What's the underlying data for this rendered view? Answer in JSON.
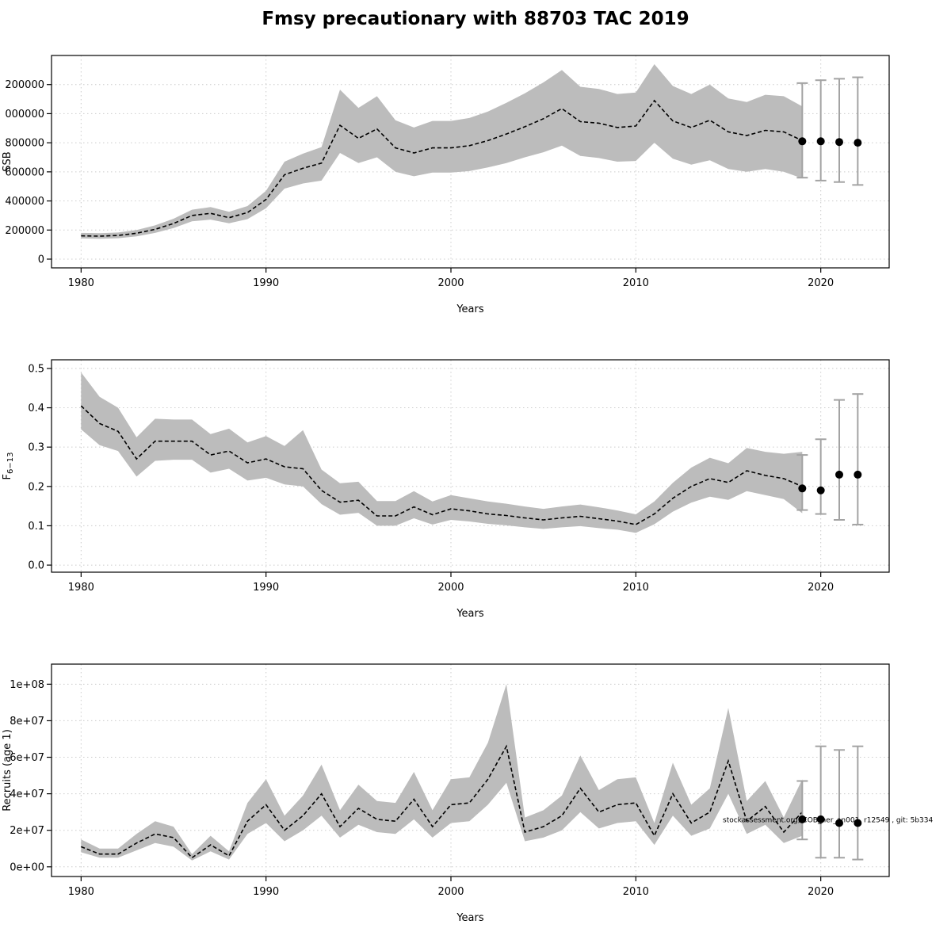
{
  "title": "Fmsy precautionary with 88703 TAC 2019",
  "colors": {
    "band": "#bcbcbc",
    "line": "#000000",
    "grid": "#cccccc",
    "forecast_bar": "#a3a3a3",
    "forecast_dot": "#000000"
  },
  "chart_data": [
    {
      "type": "line",
      "name": "ssb",
      "xlabel": "Years",
      "ylabel": "SSB",
      "ylabel_sub": "",
      "xlim": [
        1978.4,
        2023.7
      ],
      "ylim": [
        -60000,
        1400000
      ],
      "xticks": [
        1980,
        1990,
        2000,
        2010,
        2020
      ],
      "xtick_labels": [
        "1980",
        "1990",
        "2000",
        "2010",
        "2020"
      ],
      "ytick_values": [
        0,
        200000,
        400000,
        600000,
        800000,
        1000000,
        1200000
      ],
      "ytick_labels": [
        "0",
        "200000",
        "400000",
        "600000",
        "800000",
        "000000",
        "200000"
      ],
      "x": [
        1980,
        1981,
        1982,
        1983,
        1984,
        1985,
        1986,
        1987,
        1988,
        1989,
        1990,
        1991,
        1992,
        1993,
        1994,
        1995,
        1996,
        1997,
        1998,
        1999,
        2000,
        2001,
        2002,
        2003,
        2004,
        2005,
        2006,
        2007,
        2008,
        2009,
        2010,
        2011,
        2012,
        2013,
        2014,
        2015,
        2016,
        2017,
        2018,
        2019
      ],
      "line": [
        160000,
        158000,
        163000,
        178000,
        205000,
        245000,
        300000,
        315000,
        285000,
        320000,
        410000,
        580000,
        625000,
        660000,
        920000,
        830000,
        895000,
        765000,
        730000,
        765000,
        765000,
        780000,
        815000,
        860000,
        910000,
        965000,
        1035000,
        945000,
        935000,
        905000,
        915000,
        1090000,
        950000,
        905000,
        955000,
        875000,
        850000,
        885000,
        875000,
        815000
      ],
      "band_lower": [
        142000,
        140000,
        144000,
        157000,
        180000,
        214000,
        260000,
        272000,
        246000,
        275000,
        350000,
        485000,
        520000,
        540000,
        730000,
        660000,
        700000,
        600000,
        570000,
        595000,
        595000,
        605000,
        630000,
        660000,
        700000,
        735000,
        780000,
        710000,
        695000,
        670000,
        675000,
        800000,
        690000,
        650000,
        680000,
        620000,
        600000,
        620000,
        600000,
        555000
      ],
      "band_upper": [
        180000,
        178000,
        183000,
        200000,
        232000,
        278000,
        340000,
        358000,
        325000,
        365000,
        470000,
        670000,
        725000,
        770000,
        1165000,
        1040000,
        1120000,
        955000,
        905000,
        950000,
        950000,
        970000,
        1015000,
        1075000,
        1140000,
        1215000,
        1300000,
        1185000,
        1170000,
        1135000,
        1145000,
        1340000,
        1190000,
        1135000,
        1200000,
        1105000,
        1080000,
        1130000,
        1120000,
        1050000
      ],
      "forecast": {
        "x": [
          2019,
          2020,
          2021,
          2022
        ],
        "y": [
          810000,
          810000,
          805000,
          800000
        ],
        "lo": [
          560000,
          540000,
          530000,
          510000
        ],
        "hi": [
          1210000,
          1230000,
          1240000,
          1250000
        ]
      }
    },
    {
      "type": "line",
      "name": "fbar",
      "xlabel": "Years",
      "ylabel": "F",
      "ylabel_sub": "6−13",
      "xlim": [
        1978.4,
        2023.7
      ],
      "ylim": [
        -0.018,
        0.522
      ],
      "xticks": [
        1980,
        1990,
        2000,
        2010,
        2020
      ],
      "xtick_labels": [
        "1980",
        "1990",
        "2000",
        "2010",
        "2020"
      ],
      "ytick_values": [
        0.0,
        0.1,
        0.2,
        0.3,
        0.4,
        0.5
      ],
      "ytick_labels": [
        "0.0",
        "0.1",
        "0.2",
        "0.3",
        "0.4",
        "0.5"
      ],
      "x": [
        1980,
        1981,
        1982,
        1983,
        1984,
        1985,
        1986,
        1987,
        1988,
        1989,
        1990,
        1991,
        1992,
        1993,
        1994,
        1995,
        1996,
        1997,
        1998,
        1999,
        2000,
        2001,
        2002,
        2003,
        2004,
        2005,
        2006,
        2007,
        2008,
        2009,
        2010,
        2011,
        2012,
        2013,
        2014,
        2015,
        2016,
        2017,
        2018,
        2019
      ],
      "line": [
        0.405,
        0.36,
        0.34,
        0.27,
        0.315,
        0.315,
        0.315,
        0.28,
        0.29,
        0.26,
        0.27,
        0.25,
        0.245,
        0.19,
        0.16,
        0.165,
        0.125,
        0.125,
        0.148,
        0.128,
        0.143,
        0.138,
        0.13,
        0.126,
        0.12,
        0.115,
        0.12,
        0.124,
        0.118,
        0.112,
        0.103,
        0.13,
        0.17,
        0.2,
        0.22,
        0.21,
        0.24,
        0.228,
        0.22,
        0.2
      ],
      "band_lower": [
        0.345,
        0.305,
        0.29,
        0.225,
        0.265,
        0.268,
        0.268,
        0.235,
        0.245,
        0.215,
        0.222,
        0.205,
        0.2,
        0.155,
        0.128,
        0.133,
        0.1,
        0.1,
        0.119,
        0.103,
        0.115,
        0.111,
        0.105,
        0.101,
        0.096,
        0.092,
        0.096,
        0.099,
        0.094,
        0.09,
        0.082,
        0.104,
        0.136,
        0.159,
        0.174,
        0.166,
        0.188,
        0.178,
        0.168,
        0.132
      ],
      "band_upper": [
        0.49,
        0.428,
        0.4,
        0.325,
        0.372,
        0.37,
        0.37,
        0.333,
        0.347,
        0.312,
        0.328,
        0.303,
        0.343,
        0.243,
        0.208,
        0.212,
        0.163,
        0.163,
        0.188,
        0.162,
        0.178,
        0.17,
        0.162,
        0.156,
        0.149,
        0.143,
        0.149,
        0.154,
        0.147,
        0.139,
        0.129,
        0.162,
        0.209,
        0.248,
        0.273,
        0.259,
        0.298,
        0.288,
        0.283,
        0.288
      ],
      "forecast": {
        "x": [
          2019,
          2020,
          2021,
          2022
        ],
        "y": [
          0.195,
          0.19,
          0.23,
          0.23
        ],
        "lo": [
          0.14,
          0.13,
          0.115,
          0.103
        ],
        "hi": [
          0.28,
          0.32,
          0.42,
          0.435
        ]
      }
    },
    {
      "type": "line",
      "name": "recruits",
      "xlabel": "Years",
      "ylabel": "Recruits (age 1)",
      "ylabel_sub": "",
      "xlim": [
        1978.4,
        2023.7
      ],
      "ylim": [
        -5300000,
        111000000
      ],
      "xticks": [
        1980,
        1990,
        2000,
        2010,
        2020
      ],
      "xtick_labels": [
        "1980",
        "1990",
        "2000",
        "2010",
        "2020"
      ],
      "ytick_values": [
        0,
        20000000,
        40000000,
        60000000,
        80000000,
        100000000
      ],
      "ytick_labels": [
        "0e+00",
        "2e+07",
        "4e+07",
        "6e+07",
        "8e+07",
        "1e+08"
      ],
      "x": [
        1980,
        1981,
        1982,
        1983,
        1984,
        1985,
        1986,
        1987,
        1988,
        1989,
        1990,
        1991,
        1992,
        1993,
        1994,
        1995,
        1996,
        1997,
        1998,
        1999,
        2000,
        2001,
        2002,
        2003,
        2004,
        2005,
        2006,
        2007,
        2008,
        2009,
        2010,
        2011,
        2012,
        2013,
        2014,
        2015,
        2016,
        2017,
        2018,
        2019
      ],
      "line": [
        11000000,
        7000000,
        7000000,
        13000000,
        18000000,
        16000000,
        5000000,
        12000000,
        6000000,
        25000000,
        34000000,
        20000000,
        28000000,
        40000000,
        22000000,
        32000000,
        26000000,
        25000000,
        37000000,
        22000000,
        34000000,
        35000000,
        48000000,
        66000000,
        19000000,
        22000000,
        28000000,
        43000000,
        30000000,
        34000000,
        35000000,
        17000000,
        40000000,
        24000000,
        30000000,
        58000000,
        25000000,
        33000000,
        19000000,
        30000000
      ],
      "band_lower": [
        8000000,
        5000000,
        5000000,
        9000000,
        13000000,
        11000000,
        3500000,
        8500000,
        4000000,
        18000000,
        24000000,
        14000000,
        20000000,
        28000000,
        16000000,
        23000000,
        19000000,
        18000000,
        26000000,
        16000000,
        24000000,
        25000000,
        34000000,
        46000000,
        14000000,
        16000000,
        20000000,
        30000000,
        21000000,
        24000000,
        25000000,
        12000000,
        28000000,
        17000000,
        21000000,
        40000000,
        18000000,
        23000000,
        13000000,
        17000000
      ],
      "band_upper": [
        15000000,
        10000000,
        10000000,
        18000000,
        25000000,
        22000000,
        7000000,
        17000000,
        8500000,
        35000000,
        48000000,
        28000000,
        39000000,
        56000000,
        31000000,
        45000000,
        36000000,
        35000000,
        52000000,
        31000000,
        48000000,
        49000000,
        68000000,
        100000000,
        27000000,
        31000000,
        39000000,
        61000000,
        42000000,
        48000000,
        49000000,
        24000000,
        57000000,
        34000000,
        43000000,
        87000000,
        36000000,
        47000000,
        27000000,
        48000000
      ],
      "forecast": {
        "x": [
          2019,
          2020,
          2021,
          2022
        ],
        "y": [
          26000000,
          26000000,
          24000000,
          24000000
        ],
        "lo": [
          15000000,
          5000000,
          5000000,
          4000000
        ],
        "hi": [
          47000000,
          66000000,
          64000000,
          66000000
        ]
      },
      "annotation": {
        "text": "stockassessment.org, COB_her_an001, r12549 , git: 5b334",
        "x": 2014.7,
        "y": 24500000
      }
    }
  ]
}
